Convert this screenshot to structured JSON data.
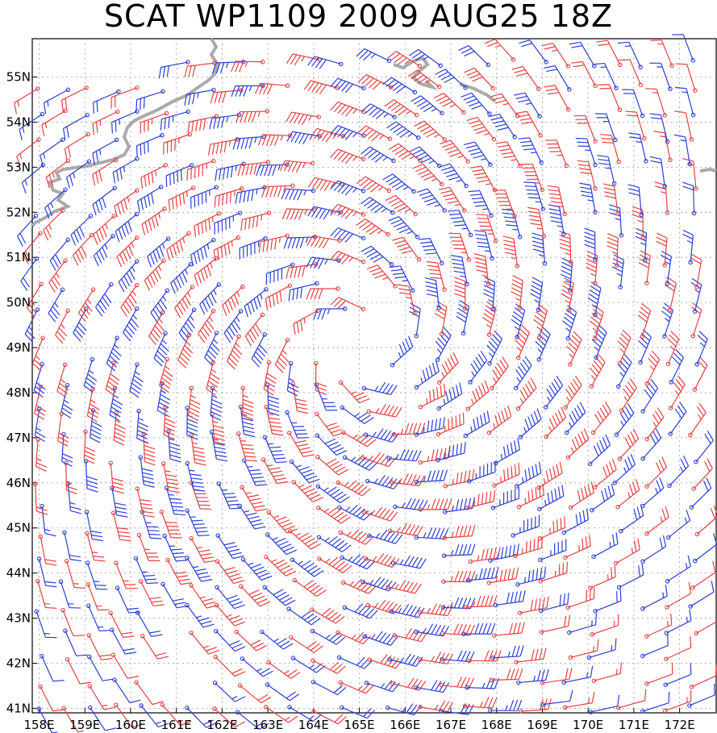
{
  "title": "SCAT WP1109 2009 AUG25 18Z",
  "lon_labels": [
    "158E",
    "159E",
    "160E",
    "161E",
    "162E",
    "163E",
    "164E",
    "165E",
    "166E",
    "167E",
    "168E",
    "169E",
    "170E",
    "171E",
    "172E"
  ],
  "lat_labels": [
    "41N",
    "42N",
    "43N",
    "44N",
    "45N",
    "46N",
    "47N",
    "48N",
    "49N",
    "50N",
    "51N",
    "52N",
    "53N",
    "54N",
    "55N"
  ],
  "colors": {
    "pass_a": "#2b3fd6",
    "pass_b": "#e84040",
    "coast": "#aaaaaa",
    "grid": "#999999"
  },
  "chart_data": {
    "type": "wind-barb-map",
    "lon_range": [
      157.85,
      172.8
    ],
    "lat_range": [
      40.9,
      55.85
    ],
    "storm_center": [
      165.0,
      49.0
    ]
  }
}
